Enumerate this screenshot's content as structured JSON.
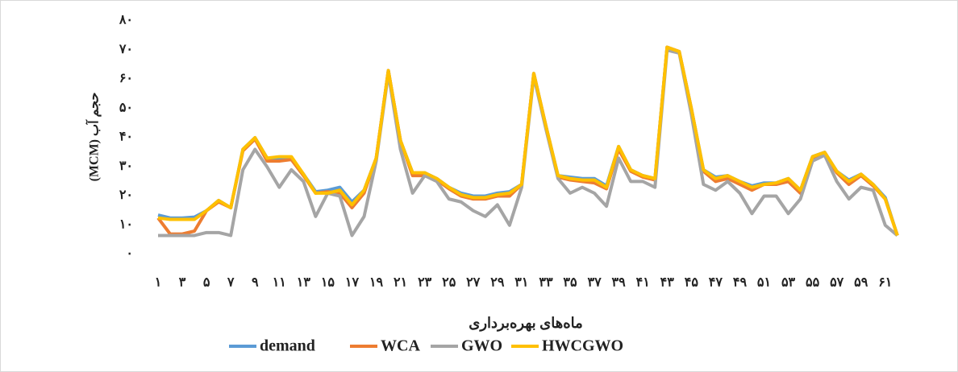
{
  "chart_data": {
    "type": "line",
    "y_label": "حجم آب (MCM)",
    "x_label": "ماه‌های بهره‌برداری",
    "categories": [
      "۱",
      null,
      "۳",
      null,
      "۵",
      null,
      "۷",
      null,
      "۹",
      null,
      "۱۱",
      null,
      "۱۳",
      null,
      "۱۵",
      null,
      "۱۷",
      null,
      "۱۹",
      null,
      "۲۱",
      null,
      "۲۳",
      null,
      "۲۵",
      null,
      "۲۷",
      null,
      "۲۹",
      null,
      "۳۱",
      null,
      "۳۳",
      null,
      "۳۵",
      null,
      "۳۷",
      null,
      "۳۹",
      null,
      "۴۱",
      null,
      "۴۳",
      null,
      "۴۵",
      null,
      "۴۷",
      null,
      "۴۹",
      null,
      "۵۱",
      null,
      "۵۳",
      null,
      "۵۵",
      null,
      "۵۷",
      null,
      "۵۹",
      null,
      "۶۱",
      null
    ],
    "series": [
      {
        "name": "demand",
        "color": "#5b9bd5",
        "values": [
          13.5,
          12.5,
          12.5,
          12.8,
          15,
          18.5,
          16,
          36,
          40,
          33,
          33,
          33,
          27.5,
          21.5,
          22,
          23,
          18,
          22,
          33,
          63,
          39,
          28,
          28,
          26,
          23,
          21,
          20,
          20,
          21,
          21.5,
          24,
          62,
          44,
          27,
          26.5,
          26,
          26,
          23.5,
          37,
          29,
          27,
          26,
          71,
          69.5,
          50,
          29,
          26.5,
          27,
          25,
          23.5,
          24.5,
          24.5,
          26,
          22,
          33.5,
          35,
          28.5,
          25.5,
          27.5,
          24,
          19.5,
          6.5
        ]
      },
      {
        "name": "WCA",
        "color": "#ed7d31",
        "values": [
          12.5,
          7,
          7,
          8,
          15,
          18,
          16,
          35.5,
          39.5,
          32,
          32,
          32.5,
          27,
          21,
          21.5,
          21,
          16,
          21,
          33,
          63,
          39,
          27,
          27,
          25.5,
          22.5,
          20,
          19,
          19,
          20,
          20,
          24,
          62,
          44,
          26.5,
          25.5,
          25,
          24.5,
          22.5,
          36,
          28.5,
          26.5,
          25.5,
          71,
          69.5,
          50,
          28.5,
          25,
          26,
          24,
          22,
          24,
          24,
          25,
          21,
          33,
          34.5,
          28,
          24,
          27,
          23.5,
          19,
          6.5
        ]
      },
      {
        "name": "GWO",
        "color": "#a5a5a5",
        "values": [
          6.5,
          6.5,
          6.5,
          6.5,
          7.5,
          7.5,
          6.5,
          29,
          36,
          30,
          23,
          29,
          25,
          13,
          21,
          20,
          6.5,
          13,
          32,
          62,
          36,
          21,
          27,
          25,
          19,
          18,
          15,
          13,
          17,
          10,
          23,
          61,
          43,
          26,
          21,
          23,
          21,
          16.5,
          33,
          25,
          25,
          23,
          70,
          69,
          48,
          24,
          22,
          25,
          21,
          14,
          20,
          20,
          14,
          19,
          32,
          34,
          25,
          19,
          23,
          22,
          10,
          6.5
        ]
      },
      {
        "name": "HWCGWO",
        "color": "#ffc000",
        "values": [
          12.5,
          12,
          12,
          12,
          15,
          18.5,
          16,
          36,
          40,
          33,
          33.5,
          33.5,
          27.5,
          21,
          21,
          22,
          17,
          22,
          33,
          63,
          39,
          28,
          28,
          26,
          23,
          20.5,
          19.5,
          19.5,
          20.5,
          21,
          24,
          62,
          44,
          27,
          26,
          25.5,
          25.5,
          23,
          37,
          29,
          27,
          26,
          71,
          69.5,
          50,
          29,
          26,
          27,
          25,
          23,
          24,
          24.5,
          26,
          22,
          33.5,
          35,
          28.5,
          25,
          27.5,
          24,
          19,
          6.5
        ]
      }
    ],
    "ylim": [
      0,
      80
    ],
    "yticks": [
      {
        "value": 0,
        "label": "۰"
      },
      {
        "value": 10,
        "label": "۱۰"
      },
      {
        "value": 20,
        "label": "۲۰"
      },
      {
        "value": 30,
        "label": "۳۰"
      },
      {
        "value": 40,
        "label": "۴۰"
      },
      {
        "value": 50,
        "label": "۵۰"
      },
      {
        "value": 60,
        "label": "۶۰"
      },
      {
        "value": 70,
        "label": "۷۰"
      },
      {
        "value": 80,
        "label": "۸۰"
      }
    ],
    "legend": "bottom"
  }
}
